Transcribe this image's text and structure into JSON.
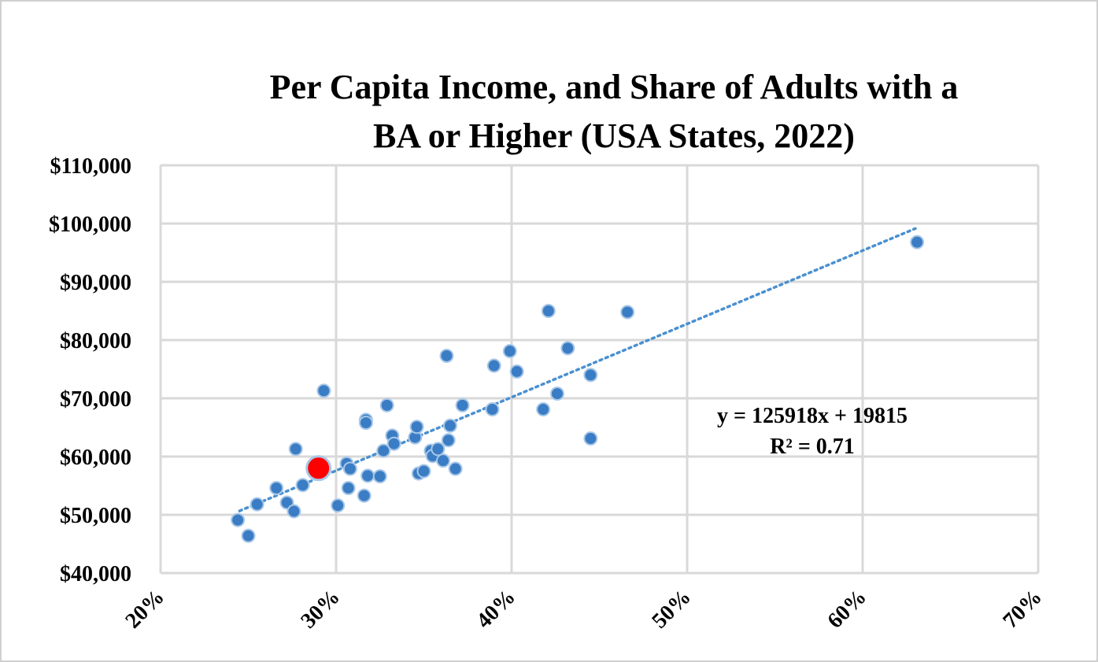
{
  "chart_data": {
    "type": "scatter",
    "title_line1": "Per Capita Income, and Share of Adults with a",
    "title_line2": "BA or Higher (USA States, 2022)",
    "xlabel": "",
    "ylabel": "",
    "xlim": [
      0.2,
      0.7
    ],
    "ylim": [
      40000,
      110000
    ],
    "x_ticks": [
      0.2,
      0.3,
      0.4,
      0.5,
      0.6,
      0.7
    ],
    "x_tick_labels": [
      "20%",
      "30%",
      "40%",
      "50%",
      "60%",
      "70%"
    ],
    "y_ticks": [
      40000,
      50000,
      60000,
      70000,
      80000,
      90000,
      100000,
      110000
    ],
    "y_tick_labels": [
      "$40,000",
      "$50,000",
      "$60,000",
      "$70,000",
      "$80,000",
      "$90,000",
      "$100,000",
      "$110,000"
    ],
    "grid": true,
    "point_color": "#3a7dc4",
    "highlight_color": "#ff0000",
    "trendline_color": "#4a90d0",
    "trendline": {
      "slope": 125918,
      "intercept": 19815,
      "x_range": [
        0.245,
        0.63
      ]
    },
    "equation_text": "y = 125918x + 19815",
    "r2_text": "R² = 0.71",
    "points": [
      [
        0.244,
        49100
      ],
      [
        0.25,
        46400
      ],
      [
        0.255,
        51800
      ],
      [
        0.266,
        54600
      ],
      [
        0.272,
        52100
      ],
      [
        0.276,
        50600
      ],
      [
        0.277,
        61300
      ],
      [
        0.281,
        55100
      ],
      [
        0.291,
        57400
      ],
      [
        0.293,
        71300
      ],
      [
        0.301,
        51600
      ],
      [
        0.306,
        58800
      ],
      [
        0.307,
        54600
      ],
      [
        0.308,
        57900
      ],
      [
        0.316,
        53300
      ],
      [
        0.317,
        66300
      ],
      [
        0.317,
        65800
      ],
      [
        0.318,
        56700
      ],
      [
        0.325,
        56600
      ],
      [
        0.327,
        61000
      ],
      [
        0.329,
        68800
      ],
      [
        0.332,
        63600
      ],
      [
        0.333,
        62200
      ],
      [
        0.345,
        63300
      ],
      [
        0.346,
        65100
      ],
      [
        0.347,
        57100
      ],
      [
        0.35,
        57500
      ],
      [
        0.354,
        61000
      ],
      [
        0.355,
        60100
      ],
      [
        0.358,
        61300
      ],
      [
        0.361,
        59300
      ],
      [
        0.363,
        77300
      ],
      [
        0.364,
        62800
      ],
      [
        0.365,
        65300
      ],
      [
        0.368,
        57900
      ],
      [
        0.372,
        68800
      ],
      [
        0.389,
        68100
      ],
      [
        0.39,
        75600
      ],
      [
        0.399,
        78100
      ],
      [
        0.403,
        74600
      ],
      [
        0.418,
        68100
      ],
      [
        0.421,
        85000
      ],
      [
        0.426,
        70800
      ],
      [
        0.432,
        78600
      ],
      [
        0.445,
        74000
      ],
      [
        0.445,
        63100
      ],
      [
        0.466,
        84800
      ],
      [
        0.631,
        96800
      ]
    ],
    "highlight_point": [
      0.29,
      58000
    ]
  }
}
